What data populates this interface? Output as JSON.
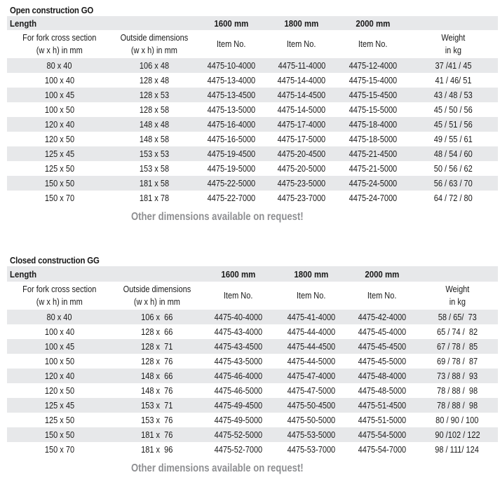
{
  "open": {
    "title": "Open construction GO",
    "header": {
      "length": "Length",
      "l1600": "1600 mm",
      "l1800": "1800 mm",
      "l2000": "2000 mm",
      "fork1": "For fork cross section",
      "fork2": "(w x h) in mm",
      "outside1": "Outside dimensions",
      "outside2": "(w x h) in mm",
      "item1": "Item No.",
      "item2": "Item No.",
      "item3": "Item No.",
      "weight1": "Weight",
      "weight2": "in kg"
    },
    "rows": [
      [
        "80 x 40",
        "106 x 48",
        "4475-10-4000",
        "4475-11-4000",
        "4475-12-4000",
        "37 /41 / 45"
      ],
      [
        "100 x 40",
        "128 x 48",
        "4475-13-4000",
        "4475-14-4000",
        "4475-15-4000",
        "41 / 46/ 51"
      ],
      [
        "100 x 45",
        "128 x 53",
        "4475-13-4500",
        "4475-14-4500",
        "4475-15-4500",
        "43 / 48 / 53"
      ],
      [
        "100 x 50",
        "128 x 58",
        "4475-13-5000",
        "4475-14-5000",
        "4475-15-5000",
        "45 / 50 / 56"
      ],
      [
        "120 x 40",
        "148 x 48",
        "4475-16-4000",
        "4475-17-4000",
        "4475-18-4000",
        "45 / 51 / 56"
      ],
      [
        "120 x 50",
        "148 x 58",
        "4475-16-5000",
        "4475-17-5000",
        "4475-18-5000",
        "49 / 55 / 61"
      ],
      [
        "125 x 45",
        "153 x 53",
        "4475-19-4500",
        "4475-20-4500",
        "4475-21-4500",
        "48 / 54 / 60"
      ],
      [
        "125 x 50",
        "153 x 58",
        "4475-19-5000",
        "4475-20-5000",
        "4475-21-5000",
        "50 / 56 / 62"
      ],
      [
        "150 x 50",
        "181 x 58",
        "4475-22-5000",
        "4475-23-5000",
        "4475-24-5000",
        "56 / 63 / 70"
      ],
      [
        "150 x 70",
        "181 x 78",
        "4475-22-7000",
        "4475-23-7000",
        "4475-24-7000",
        "64 / 72 / 80"
      ]
    ],
    "note": "Other dimensions available on request!"
  },
  "closed": {
    "title": "Closed construction GG",
    "header": {
      "length": "Length",
      "l1600": "1600 mm",
      "l1800": "1800 mm",
      "l2000": "2000 mm",
      "fork1": "For fork cross section",
      "fork2": "(w x h) in mm",
      "outside1": "Outside dimensions",
      "outside2": "(w x h) in mm",
      "item1": "Item No.",
      "item2": "Item No.",
      "item3": "Item No.",
      "weight1": "Weight",
      "weight2": "in kg"
    },
    "rows": [
      [
        "80 x 40",
        "106 x  66",
        "4475-40-4000",
        "4475-41-4000",
        "4475-42-4000",
        "58 / 65/  73"
      ],
      [
        "100 x 40",
        "128 x  66",
        "4475-43-4000",
        "4475-44-4000",
        "4475-45-4000",
        "65 / 74 /  82"
      ],
      [
        "100 x 45",
        "128 x  71",
        "4475-43-4500",
        "4475-44-4500",
        "4475-45-4500",
        "67 / 78 /  85"
      ],
      [
        "100 x 50",
        "128 x  76",
        "4475-43-5000",
        "4475-44-5000",
        "4475-45-5000",
        "69 / 78 /  87"
      ],
      [
        "120 x 40",
        "148 x  66",
        "4475-46-4000",
        "4475-47-4000",
        "4475-48-4000",
        "73 / 88 /  93"
      ],
      [
        "120 x 50",
        "148 x  76",
        "4475-46-5000",
        "4475-47-5000",
        "4475-48-5000",
        "78 / 88 /  98"
      ],
      [
        "125 x 45",
        "153 x  71",
        "4475-49-4500",
        "4475-50-4500",
        "4475-51-4500",
        "78 / 88 /  98"
      ],
      [
        "125 x 50",
        "153 x  76",
        "4475-49-5000",
        "4475-50-5000",
        "4475-51-5000",
        "80 / 90 / 100"
      ],
      [
        "150 x 50",
        "181 x  76",
        "4475-52-5000",
        "4475-53-5000",
        "4475-54-5000",
        "90 /102 / 122"
      ],
      [
        "150 x 70",
        "181 x  96",
        "4475-52-7000",
        "4475-53-7000",
        "4475-54-7000",
        "98 / 111/ 124"
      ]
    ],
    "note": "Other dimensions available on request!"
  }
}
